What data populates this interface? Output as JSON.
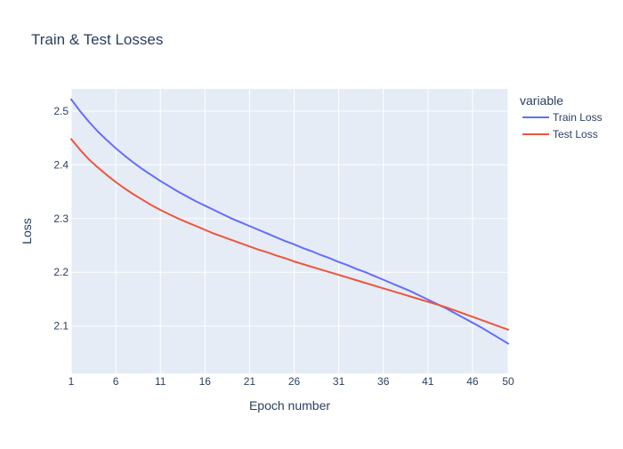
{
  "chart_data": {
    "type": "line",
    "title": "Train & Test Losses",
    "xlabel": "Epoch number",
    "ylabel": "Loss",
    "xlim": [
      1,
      50
    ],
    "ylim": [
      2.0115,
      2.5415
    ],
    "x_ticks": [
      1,
      6,
      11,
      16,
      21,
      26,
      31,
      36,
      41,
      46,
      50
    ],
    "y_ticks": [
      2.1,
      2.2,
      2.3,
      2.4,
      2.5
    ],
    "grid": true,
    "legend": {
      "title": "variable",
      "position": "right"
    },
    "x": [
      1,
      2,
      3,
      4,
      5,
      6,
      7,
      8,
      9,
      10,
      11,
      12,
      13,
      14,
      15,
      16,
      17,
      18,
      19,
      20,
      21,
      22,
      23,
      24,
      25,
      26,
      27,
      28,
      29,
      30,
      31,
      32,
      33,
      34,
      35,
      36,
      37,
      38,
      39,
      40,
      41,
      42,
      43,
      44,
      45,
      46,
      47,
      48,
      49,
      50
    ],
    "series": [
      {
        "name": "Train Loss",
        "color": "#636efa",
        "values": [
          2.522,
          2.5,
          2.48,
          2.462,
          2.446,
          2.431,
          2.417,
          2.404,
          2.392,
          2.381,
          2.37,
          2.36,
          2.35,
          2.341,
          2.332,
          2.324,
          2.316,
          2.308,
          2.3,
          2.293,
          2.286,
          2.279,
          2.272,
          2.265,
          2.258,
          2.252,
          2.245,
          2.239,
          2.232,
          2.226,
          2.219,
          2.213,
          2.206,
          2.2,
          2.193,
          2.186,
          2.179,
          2.172,
          2.165,
          2.157,
          2.149,
          2.141,
          2.133,
          2.124,
          2.115,
          2.106,
          2.097,
          2.087,
          2.077,
          2.067
        ]
      },
      {
        "name": "Test Loss",
        "color": "#ef553b",
        "values": [
          2.448,
          2.428,
          2.41,
          2.395,
          2.381,
          2.368,
          2.356,
          2.345,
          2.335,
          2.325,
          2.316,
          2.308,
          2.3,
          2.293,
          2.286,
          2.279,
          2.272,
          2.266,
          2.26,
          2.254,
          2.248,
          2.242,
          2.237,
          2.231,
          2.226,
          2.22,
          2.215,
          2.21,
          2.205,
          2.2,
          2.195,
          2.19,
          2.185,
          2.18,
          2.175,
          2.17,
          2.165,
          2.16,
          2.155,
          2.15,
          2.145,
          2.14,
          2.135,
          2.129,
          2.123,
          2.117,
          2.111,
          2.105,
          2.099,
          2.093
        ]
      }
    ]
  }
}
